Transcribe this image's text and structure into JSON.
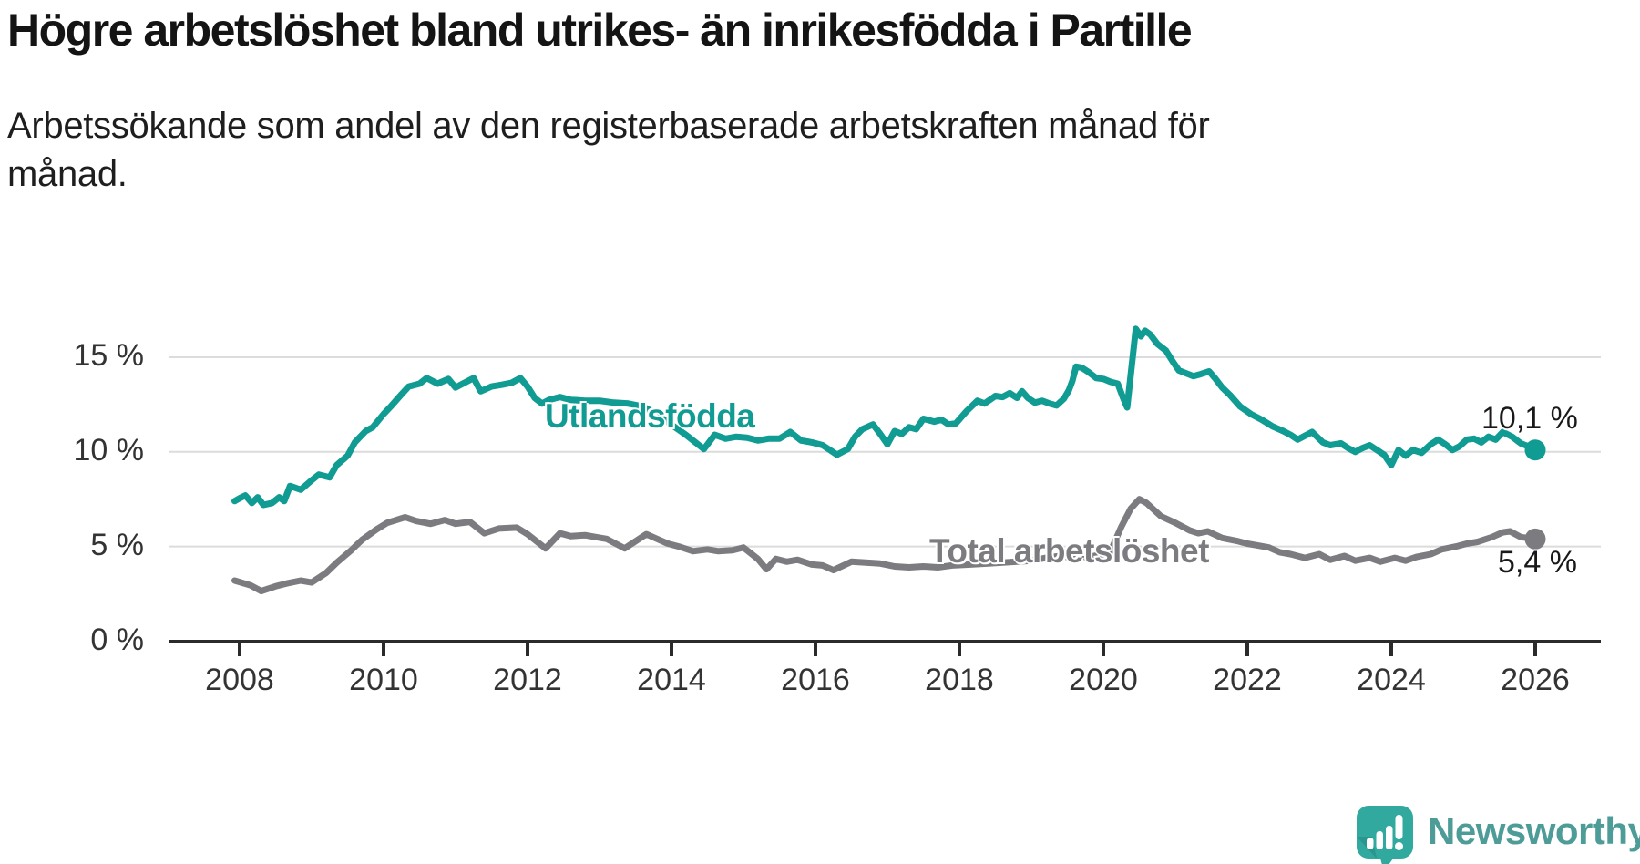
{
  "header": {
    "title": "Högre arbetslöshet bland utrikes- än inrikesfödda i Partille",
    "subtitle_lines": [
      "Arbetssökande som andel av den registerbaserade arbetskraften månad för",
      "månad."
    ]
  },
  "chart_data": {
    "type": "line",
    "title": "Högre arbetslöshet bland utrikes- än inrikesfödda i Partille",
    "xlabel": "",
    "ylabel": "",
    "x_unit": "year",
    "y_unit": "%",
    "xlim": [
      2007.9,
      2026.9
    ],
    "ylim": [
      0,
      18
    ],
    "grid": "horizontal",
    "legend_position": "inline-labels",
    "xticks": [
      2008,
      2010,
      2012,
      2014,
      2016,
      2018,
      2020,
      2022,
      2024,
      2026
    ],
    "yticks": [
      {
        "value": 0,
        "label": "0 %"
      },
      {
        "value": 5,
        "label": "5 %"
      },
      {
        "value": 10,
        "label": "10 %"
      },
      {
        "value": 15,
        "label": "15 %"
      }
    ],
    "series": [
      {
        "id": "utlandsfodda",
        "name": "Utlandsfödda",
        "color": "#109b93",
        "end_label": "10,1 %",
        "end_value": 10.1,
        "points": [
          [
            2007.93,
            7.4
          ],
          [
            2008.0,
            7.55
          ],
          [
            2008.08,
            7.7
          ],
          [
            2008.17,
            7.3
          ],
          [
            2008.25,
            7.6
          ],
          [
            2008.33,
            7.2
          ],
          [
            2008.45,
            7.3
          ],
          [
            2008.55,
            7.6
          ],
          [
            2008.62,
            7.4
          ],
          [
            2008.7,
            8.2
          ],
          [
            2008.85,
            8.0
          ],
          [
            2009.0,
            8.5
          ],
          [
            2009.1,
            8.8
          ],
          [
            2009.25,
            8.65
          ],
          [
            2009.35,
            9.3
          ],
          [
            2009.5,
            9.8
          ],
          [
            2009.6,
            10.5
          ],
          [
            2009.75,
            11.1
          ],
          [
            2009.85,
            11.3
          ],
          [
            2010.0,
            12.0
          ],
          [
            2010.1,
            12.4
          ],
          [
            2010.25,
            13.05
          ],
          [
            2010.35,
            13.45
          ],
          [
            2010.5,
            13.6
          ],
          [
            2010.6,
            13.9
          ],
          [
            2010.75,
            13.6
          ],
          [
            2010.9,
            13.85
          ],
          [
            2011.0,
            13.4
          ],
          [
            2011.1,
            13.6
          ],
          [
            2011.25,
            13.9
          ],
          [
            2011.35,
            13.2
          ],
          [
            2011.5,
            13.45
          ],
          [
            2011.65,
            13.55
          ],
          [
            2011.78,
            13.65
          ],
          [
            2011.9,
            13.9
          ],
          [
            2012.0,
            13.45
          ],
          [
            2012.1,
            12.85
          ],
          [
            2012.2,
            12.55
          ],
          [
            2012.3,
            12.75
          ],
          [
            2012.45,
            12.9
          ],
          [
            2012.6,
            12.75
          ],
          [
            2012.8,
            12.7
          ],
          [
            2013.0,
            12.7
          ],
          [
            2013.2,
            12.6
          ],
          [
            2013.4,
            12.55
          ],
          [
            2013.6,
            12.4
          ],
          [
            2013.75,
            12.1
          ],
          [
            2013.9,
            11.7
          ],
          [
            2014.05,
            11.3
          ],
          [
            2014.2,
            10.9
          ],
          [
            2014.45,
            10.15
          ],
          [
            2014.6,
            10.9
          ],
          [
            2014.75,
            10.7
          ],
          [
            2014.9,
            10.8
          ],
          [
            2015.05,
            10.75
          ],
          [
            2015.2,
            10.6
          ],
          [
            2015.35,
            10.7
          ],
          [
            2015.5,
            10.7
          ],
          [
            2015.65,
            11.05
          ],
          [
            2015.8,
            10.6
          ],
          [
            2015.95,
            10.5
          ],
          [
            2016.1,
            10.35
          ],
          [
            2016.3,
            9.85
          ],
          [
            2016.45,
            10.15
          ],
          [
            2016.55,
            10.8
          ],
          [
            2016.65,
            11.2
          ],
          [
            2016.8,
            11.45
          ],
          [
            2016.9,
            10.95
          ],
          [
            2017.0,
            10.4
          ],
          [
            2017.1,
            11.1
          ],
          [
            2017.2,
            10.95
          ],
          [
            2017.3,
            11.3
          ],
          [
            2017.4,
            11.2
          ],
          [
            2017.5,
            11.75
          ],
          [
            2017.65,
            11.6
          ],
          [
            2017.75,
            11.7
          ],
          [
            2017.85,
            11.45
          ],
          [
            2017.95,
            11.5
          ],
          [
            2018.1,
            12.15
          ],
          [
            2018.25,
            12.7
          ],
          [
            2018.35,
            12.55
          ],
          [
            2018.5,
            12.95
          ],
          [
            2018.6,
            12.9
          ],
          [
            2018.7,
            13.1
          ],
          [
            2018.8,
            12.85
          ],
          [
            2018.87,
            13.2
          ],
          [
            2018.95,
            12.85
          ],
          [
            2019.05,
            12.6
          ],
          [
            2019.15,
            12.7
          ],
          [
            2019.25,
            12.55
          ],
          [
            2019.35,
            12.45
          ],
          [
            2019.45,
            12.8
          ],
          [
            2019.52,
            13.25
          ],
          [
            2019.57,
            13.75
          ],
          [
            2019.62,
            14.5
          ],
          [
            2019.7,
            14.45
          ],
          [
            2019.8,
            14.2
          ],
          [
            2019.9,
            13.9
          ],
          [
            2020.0,
            13.85
          ],
          [
            2020.1,
            13.7
          ],
          [
            2020.2,
            13.6
          ],
          [
            2020.27,
            12.9
          ],
          [
            2020.33,
            12.35
          ],
          [
            2020.45,
            16.5
          ],
          [
            2020.52,
            16.1
          ],
          [
            2020.58,
            16.4
          ],
          [
            2020.65,
            16.2
          ],
          [
            2020.75,
            15.7
          ],
          [
            2020.87,
            15.35
          ],
          [
            2020.96,
            14.8
          ],
          [
            2021.05,
            14.3
          ],
          [
            2021.15,
            14.15
          ],
          [
            2021.25,
            14.0
          ],
          [
            2021.35,
            14.1
          ],
          [
            2021.47,
            14.25
          ],
          [
            2021.55,
            13.9
          ],
          [
            2021.65,
            13.4
          ],
          [
            2021.76,
            13.0
          ],
          [
            2021.9,
            12.4
          ],
          [
            2022.05,
            12.0
          ],
          [
            2022.2,
            11.7
          ],
          [
            2022.35,
            11.35
          ],
          [
            2022.5,
            11.1
          ],
          [
            2022.6,
            10.9
          ],
          [
            2022.7,
            10.65
          ],
          [
            2022.8,
            10.85
          ],
          [
            2022.9,
            11.05
          ],
          [
            2023.05,
            10.5
          ],
          [
            2023.15,
            10.35
          ],
          [
            2023.3,
            10.45
          ],
          [
            2023.4,
            10.2
          ],
          [
            2023.5,
            10.0
          ],
          [
            2023.6,
            10.2
          ],
          [
            2023.7,
            10.35
          ],
          [
            2023.8,
            10.1
          ],
          [
            2023.9,
            9.85
          ],
          [
            2024.0,
            9.3
          ],
          [
            2024.1,
            10.1
          ],
          [
            2024.2,
            9.8
          ],
          [
            2024.3,
            10.1
          ],
          [
            2024.42,
            9.95
          ],
          [
            2024.55,
            10.4
          ],
          [
            2024.65,
            10.65
          ],
          [
            2024.75,
            10.4
          ],
          [
            2024.85,
            10.1
          ],
          [
            2024.95,
            10.3
          ],
          [
            2025.05,
            10.65
          ],
          [
            2025.15,
            10.7
          ],
          [
            2025.25,
            10.5
          ],
          [
            2025.35,
            10.8
          ],
          [
            2025.45,
            10.65
          ],
          [
            2025.55,
            11.05
          ],
          [
            2025.68,
            10.8
          ],
          [
            2025.8,
            10.45
          ],
          [
            2025.9,
            10.3
          ],
          [
            2026.0,
            10.1
          ]
        ]
      },
      {
        "id": "total",
        "name": "Total arbetslöshet",
        "color": "#7c7c80",
        "end_label": "5,4 %",
        "end_value": 5.4,
        "points": [
          [
            2007.93,
            3.2
          ],
          [
            2008.15,
            2.95
          ],
          [
            2008.3,
            2.65
          ],
          [
            2008.5,
            2.9
          ],
          [
            2008.65,
            3.05
          ],
          [
            2008.85,
            3.2
          ],
          [
            2009.0,
            3.1
          ],
          [
            2009.2,
            3.6
          ],
          [
            2009.35,
            4.15
          ],
          [
            2009.55,
            4.8
          ],
          [
            2009.7,
            5.35
          ],
          [
            2009.9,
            5.9
          ],
          [
            2010.05,
            6.25
          ],
          [
            2010.3,
            6.55
          ],
          [
            2010.45,
            6.35
          ],
          [
            2010.65,
            6.2
          ],
          [
            2010.85,
            6.4
          ],
          [
            2011.0,
            6.2
          ],
          [
            2011.2,
            6.3
          ],
          [
            2011.4,
            5.7
          ],
          [
            2011.6,
            5.95
          ],
          [
            2011.85,
            6.0
          ],
          [
            2012.0,
            5.65
          ],
          [
            2012.25,
            4.9
          ],
          [
            2012.45,
            5.7
          ],
          [
            2012.6,
            5.55
          ],
          [
            2012.8,
            5.6
          ],
          [
            2012.95,
            5.5
          ],
          [
            2013.1,
            5.4
          ],
          [
            2013.35,
            4.9
          ],
          [
            2013.55,
            5.4
          ],
          [
            2013.65,
            5.65
          ],
          [
            2013.8,
            5.4
          ],
          [
            2013.95,
            5.15
          ],
          [
            2014.1,
            5.0
          ],
          [
            2014.3,
            4.75
          ],
          [
            2014.5,
            4.85
          ],
          [
            2014.65,
            4.75
          ],
          [
            2014.85,
            4.8
          ],
          [
            2015.0,
            4.95
          ],
          [
            2015.2,
            4.35
          ],
          [
            2015.32,
            3.8
          ],
          [
            2015.45,
            4.35
          ],
          [
            2015.6,
            4.2
          ],
          [
            2015.75,
            4.3
          ],
          [
            2015.95,
            4.05
          ],
          [
            2016.1,
            4.0
          ],
          [
            2016.25,
            3.75
          ],
          [
            2016.5,
            4.2
          ],
          [
            2016.7,
            4.15
          ],
          [
            2016.9,
            4.1
          ],
          [
            2017.1,
            3.95
          ],
          [
            2017.3,
            3.9
          ],
          [
            2017.5,
            3.95
          ],
          [
            2017.7,
            3.9
          ],
          [
            2017.9,
            4.0
          ],
          [
            2018.15,
            4.05
          ],
          [
            2018.4,
            4.1
          ],
          [
            2018.6,
            4.15
          ],
          [
            2018.8,
            4.2
          ],
          [
            2019.0,
            4.25
          ],
          [
            2019.2,
            4.4
          ],
          [
            2019.4,
            4.5
          ],
          [
            2019.6,
            4.4
          ],
          [
            2019.8,
            4.45
          ],
          [
            2020.0,
            4.6
          ],
          [
            2020.1,
            4.75
          ],
          [
            2020.25,
            6.05
          ],
          [
            2020.38,
            7.0
          ],
          [
            2020.5,
            7.5
          ],
          [
            2020.6,
            7.3
          ],
          [
            2020.8,
            6.6
          ],
          [
            2021.0,
            6.25
          ],
          [
            2021.2,
            5.85
          ],
          [
            2021.32,
            5.7
          ],
          [
            2021.45,
            5.8
          ],
          [
            2021.65,
            5.45
          ],
          [
            2021.85,
            5.3
          ],
          [
            2022.0,
            5.15
          ],
          [
            2022.15,
            5.05
          ],
          [
            2022.3,
            4.95
          ],
          [
            2022.45,
            4.7
          ],
          [
            2022.6,
            4.6
          ],
          [
            2022.8,
            4.4
          ],
          [
            2023.0,
            4.6
          ],
          [
            2023.15,
            4.3
          ],
          [
            2023.35,
            4.5
          ],
          [
            2023.5,
            4.25
          ],
          [
            2023.7,
            4.4
          ],
          [
            2023.85,
            4.2
          ],
          [
            2024.05,
            4.4
          ],
          [
            2024.2,
            4.25
          ],
          [
            2024.35,
            4.45
          ],
          [
            2024.55,
            4.6
          ],
          [
            2024.7,
            4.85
          ],
          [
            2024.9,
            5.0
          ],
          [
            2025.05,
            5.15
          ],
          [
            2025.2,
            5.25
          ],
          [
            2025.4,
            5.5
          ],
          [
            2025.55,
            5.75
          ],
          [
            2025.65,
            5.8
          ],
          [
            2025.8,
            5.5
          ],
          [
            2026.0,
            5.4
          ]
        ]
      }
    ]
  },
  "branding": {
    "name": "Newsworthy",
    "icon": "newsworthy-bar-chart-bubble-icon",
    "icon_color": "#31a99e",
    "icon_shade_color": "#23887f",
    "text_color": "#4d9c98"
  },
  "colors": {
    "grid": "#dcdcdc",
    "axis": "#2b2b2b",
    "tick_text": "#333333"
  }
}
